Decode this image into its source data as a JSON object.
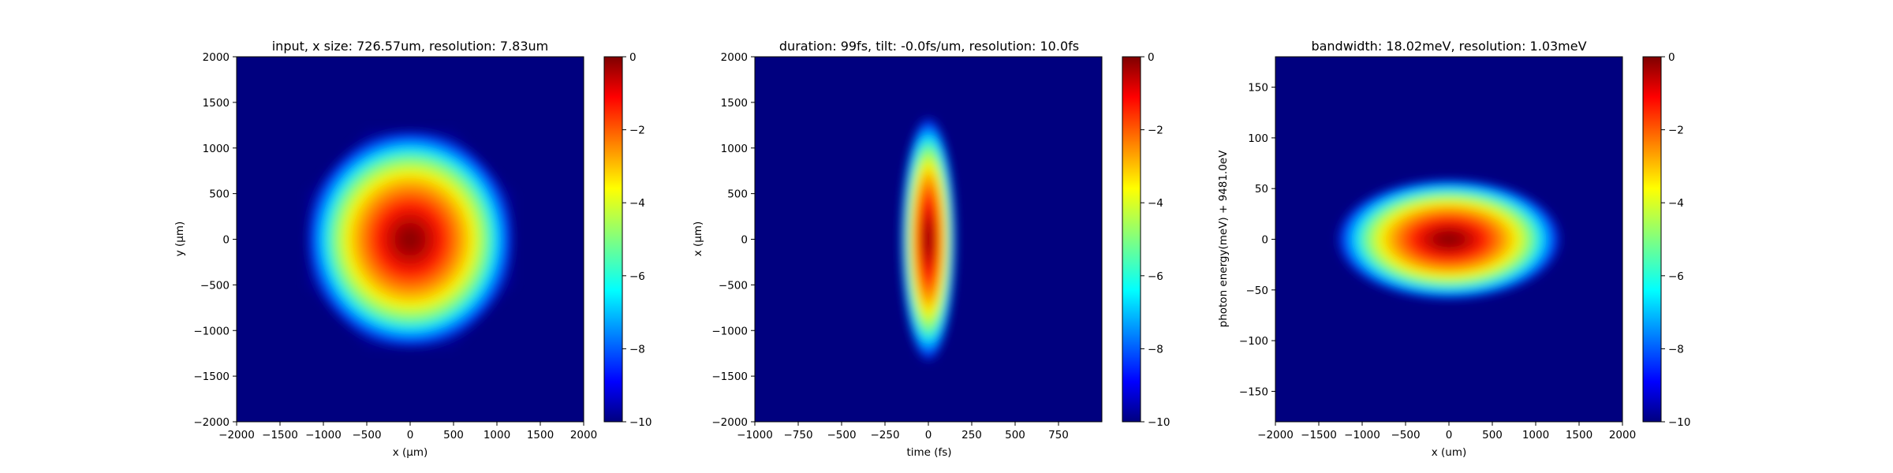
{
  "chart_data": [
    {
      "type": "heatmap",
      "title": "input, x size: 726.57um, resolution: 7.83um",
      "xlabel": "x (μm)",
      "ylabel": "y (μm)",
      "xlim": [
        -2000,
        2000
      ],
      "ylim": [
        -2000,
        2000
      ],
      "xticks": [
        "−2000",
        "−1500",
        "−1000",
        "−500",
        "0",
        "500",
        "1000",
        "1500",
        "2000"
      ],
      "yticks": [
        "2000",
        "1500",
        "1000",
        "500",
        "0",
        "−500",
        "−1000",
        "−1500",
        "−2000"
      ],
      "colormap": "jet",
      "clim": [
        -10,
        0
      ],
      "colorbar_ticks": [
        "0",
        "−2",
        "−4",
        "−6",
        "−8",
        "−10"
      ],
      "blob": {
        "shape": "octagonal",
        "center": [
          0,
          0
        ],
        "half_width_x": 1250,
        "half_width_y": 1250
      }
    },
    {
      "type": "heatmap",
      "title": "duration: 99fs, tilt: -0.0fs/um, resolution: 10.0fs",
      "xlabel": "time (fs)",
      "ylabel": "x (μm)",
      "xlim": [
        -1000,
        1000
      ],
      "ylim": [
        -2000,
        2000
      ],
      "xticks": [
        "−1000",
        "−750",
        "−500",
        "−250",
        "0",
        "250",
        "500",
        "750"
      ],
      "yticks": [
        "2000",
        "1500",
        "1000",
        "500",
        "0",
        "−500",
        "−1000",
        "−1500",
        "−2000"
      ],
      "colormap": "jet",
      "clim": [
        -10,
        0
      ],
      "colorbar_ticks": [
        "0",
        "−2",
        "−4",
        "−6",
        "−8",
        "−10"
      ],
      "blob": {
        "shape": "ellipse",
        "center": [
          0,
          0
        ],
        "half_width_x": 160,
        "half_width_y": 1350
      }
    },
    {
      "type": "heatmap",
      "title": "bandwidth: 18.02meV, resolution: 1.03meV",
      "xlabel": "x (um)",
      "ylabel": "photon energy(meV) + 9481.0eV",
      "xlim": [
        -2000,
        2000
      ],
      "ylim": [
        -180,
        180
      ],
      "xticks": [
        "−2000",
        "−1500",
        "−1000",
        "−500",
        "0",
        "500",
        "1000",
        "1500",
        "2000"
      ],
      "yticks": [
        "150",
        "100",
        "50",
        "0",
        "−50",
        "−100",
        "−150"
      ],
      "colormap": "jet",
      "clim": [
        -10,
        0
      ],
      "colorbar_ticks": [
        "0",
        "−2",
        "−4",
        "−6",
        "−8",
        "−10"
      ],
      "blob": {
        "shape": "ellipse",
        "center": [
          0,
          0
        ],
        "half_width_x": 1300,
        "half_width_y": 60
      }
    }
  ]
}
